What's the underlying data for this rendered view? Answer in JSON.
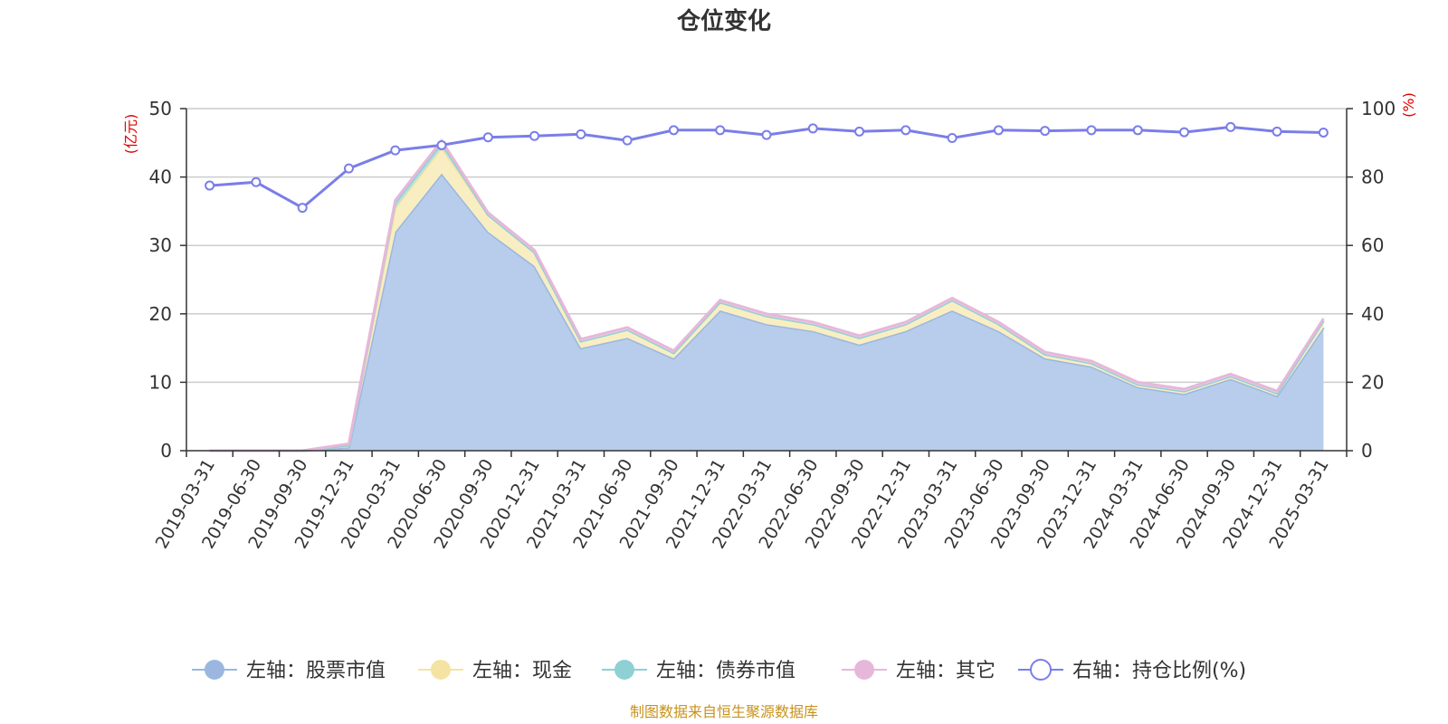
{
  "chart_data": {
    "type": "area",
    "title": "仓位变化",
    "left_unit": "(亿元)",
    "right_unit": "(%)",
    "source": "制图数据来自恒生聚源数据库",
    "categories": [
      "2019-03-31",
      "2019-06-30",
      "2019-09-30",
      "2019-12-31",
      "2020-03-31",
      "2020-06-30",
      "2020-09-30",
      "2020-12-31",
      "2021-03-31",
      "2021-06-30",
      "2021-09-30",
      "2021-12-31",
      "2022-03-31",
      "2022-06-30",
      "2022-09-30",
      "2022-12-31",
      "2023-03-31",
      "2023-06-30",
      "2023-09-30",
      "2023-12-31",
      "2024-03-31",
      "2024-06-30",
      "2024-09-30",
      "2024-12-31",
      "2025-03-31"
    ],
    "left_axis": {
      "min": 0,
      "max": 50,
      "ticks": [
        0,
        10,
        20,
        30,
        40,
        50
      ]
    },
    "right_axis": {
      "min": 0,
      "max": 100,
      "ticks": [
        0,
        20,
        40,
        60,
        80,
        100
      ]
    },
    "grid": true,
    "legend_position": "bottom",
    "series": [
      {
        "name": "左轴：股票市值",
        "axis": "left",
        "stack": true,
        "color": "#9bb7e0",
        "fill": "#b7cdeb",
        "values": [
          0,
          0,
          0,
          0.5,
          32,
          40.5,
          32,
          27,
          15,
          16.5,
          13.5,
          20.5,
          18.5,
          17.5,
          15.5,
          17.5,
          20.5,
          17.5,
          13.5,
          12.3,
          9.3,
          8.3,
          10.5,
          8,
          18
        ]
      },
      {
        "name": "左轴：现金",
        "axis": "left",
        "stack": true,
        "color": "#f5e3a3",
        "fill": "#f9eec2",
        "values": [
          0,
          0,
          0,
          0.3,
          3.5,
          3.8,
          2.5,
          2,
          1,
          1.2,
          0.8,
          1.2,
          1.2,
          1,
          1,
          1,
          1.5,
          1,
          0.6,
          0.5,
          0.4,
          0.4,
          0.4,
          0.4,
          1
        ]
      },
      {
        "name": "左轴：债券市值",
        "axis": "left",
        "stack": true,
        "color": "#8fd0d4",
        "fill": "#b1e0e2",
        "values": [
          0,
          0,
          0,
          0,
          0.8,
          0.7,
          0,
          0,
          0,
          0,
          0,
          0,
          0,
          0,
          0,
          0,
          0,
          0,
          0,
          0,
          0,
          0,
          0,
          0,
          0
        ]
      },
      {
        "name": "左轴：其它",
        "axis": "left",
        "stack": true,
        "color": "#e7b7da",
        "fill": "#f0cfe6",
        "values": [
          0,
          0,
          0,
          0.2,
          0.3,
          0.3,
          0.3,
          0.3,
          0.3,
          0.3,
          0.3,
          0.3,
          0.3,
          0.3,
          0.3,
          0.3,
          0.3,
          0.3,
          0.3,
          0.3,
          0.3,
          0.3,
          0.3,
          0.3,
          0.3
        ]
      },
      {
        "name": "右轴：持仓比例(%)",
        "axis": "right",
        "stack": false,
        "color": "#7a7ee8",
        "values": [
          77.5,
          78.5,
          71,
          82.5,
          87.8,
          89.3,
          91.6,
          92,
          92.5,
          90.7,
          93.7,
          93.7,
          92.3,
          94.2,
          93.3,
          93.7,
          91.4,
          93.7,
          93.5,
          93.7,
          93.7,
          93.1,
          94.6,
          93.3,
          93
        ]
      }
    ]
  }
}
